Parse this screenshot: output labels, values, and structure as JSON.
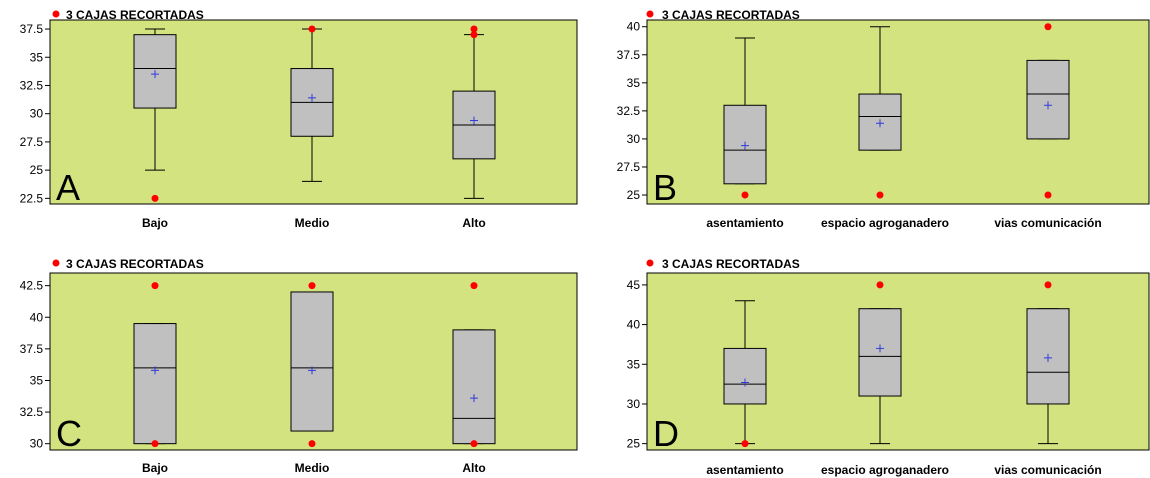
{
  "colors": {
    "panel_bg": "#d3e37f",
    "box_fill": "#c0c0c0",
    "box_stroke": "#000000",
    "mean_marker": "#2f3bd9",
    "outlier": "#ff0000"
  },
  "chart_data": [
    {
      "type": "box",
      "panel_letter": "A",
      "annotation": "3 CAJAS RECORTADAS",
      "categories": [
        "Bajo",
        "Medio",
        "Alto"
      ],
      "ylim": [
        22,
        38.3
      ],
      "yticks": [
        22.5,
        25,
        27.5,
        30,
        32.5,
        35,
        37.5
      ],
      "ytick_labels": [
        "22.5",
        "25",
        "27.5",
        "30",
        "32.5",
        "35",
        "37.5"
      ],
      "boxes": [
        {
          "whisker_low": 25,
          "q1": 30.5,
          "median": 34,
          "q3": 37,
          "whisker_high": 37.5,
          "mean": 33.5,
          "outliers": [
            22.5
          ]
        },
        {
          "whisker_low": 24,
          "q1": 28,
          "median": 31,
          "q3": 34,
          "whisker_high": 37.5,
          "mean": 31.4,
          "outliers": [
            37.5
          ]
        },
        {
          "whisker_low": 22.5,
          "q1": 26,
          "median": 29,
          "q3": 32,
          "whisker_high": 37,
          "mean": 29.4,
          "outliers": [
            37.5,
            37
          ]
        }
      ]
    },
    {
      "type": "box",
      "panel_letter": "B",
      "annotation": "3 CAJAS RECORTADAS",
      "categories": [
        "asentamiento",
        "espacio  agroganadero",
        "vias  comunicación"
      ],
      "ylim": [
        24.2,
        40.6
      ],
      "yticks": [
        25,
        27.5,
        30,
        32.5,
        35,
        37.5,
        40
      ],
      "ytick_labels": [
        "25",
        "27.5",
        "30",
        "32.5",
        "35",
        "37.5",
        "40"
      ],
      "boxes": [
        {
          "whisker_low": 26,
          "q1": 26,
          "median": 29,
          "q3": 33,
          "whisker_high": 39,
          "mean": 29.4,
          "outliers": [
            25
          ]
        },
        {
          "whisker_low": 29,
          "q1": 29,
          "median": 32,
          "q3": 34,
          "whisker_high": 40,
          "mean": 31.4,
          "outliers": [
            25
          ]
        },
        {
          "whisker_low": 30,
          "q1": 30,
          "median": 34,
          "q3": 37,
          "whisker_high": 37,
          "mean": 33,
          "outliers": [
            25,
            40
          ]
        }
      ]
    },
    {
      "type": "box",
      "panel_letter": "C",
      "annotation": "3 CAJAS RECORTADAS",
      "categories": [
        "Bajo",
        "Medio",
        "Alto"
      ],
      "ylim": [
        29.5,
        43.5
      ],
      "yticks": [
        30,
        32.5,
        35,
        37.5,
        40,
        42.5
      ],
      "ytick_labels": [
        "30",
        "32.5",
        "35",
        "37.5",
        "40",
        "42.5"
      ],
      "boxes": [
        {
          "whisker_low": 30,
          "q1": 30,
          "median": 36,
          "q3": 39.5,
          "whisker_high": 39.5,
          "mean": 35.8,
          "outliers": [
            42.5,
            30
          ]
        },
        {
          "whisker_low": 31,
          "q1": 31,
          "median": 36,
          "q3": 42,
          "whisker_high": 42,
          "mean": 35.8,
          "outliers": [
            42.5,
            30
          ]
        },
        {
          "whisker_low": 30,
          "q1": 30,
          "median": 32,
          "q3": 39,
          "whisker_high": 39,
          "mean": 33.6,
          "outliers": [
            42.5,
            30
          ]
        }
      ]
    },
    {
      "type": "box",
      "panel_letter": "D",
      "annotation": "3 CAJAS RECORTADAS",
      "categories": [
        "asentamiento",
        "espacio  agroganadero",
        "vias  comunicación"
      ],
      "ylim": [
        24.2,
        46.5
      ],
      "yticks": [
        25,
        30,
        35,
        40,
        45
      ],
      "ytick_labels": [
        "25",
        "30",
        "35",
        "40",
        "45"
      ],
      "boxes": [
        {
          "whisker_low": 25,
          "q1": 30,
          "median": 32.5,
          "q3": 37,
          "whisker_high": 43,
          "mean": 32.7,
          "outliers": [
            25
          ]
        },
        {
          "whisker_low": 25,
          "q1": 31,
          "median": 36,
          "q3": 42,
          "whisker_high": 42,
          "mean": 37,
          "outliers": [
            45
          ]
        },
        {
          "whisker_low": 25,
          "q1": 30,
          "median": 34,
          "q3": 42,
          "whisker_high": 42,
          "mean": 35.8,
          "outliers": [
            45
          ]
        }
      ]
    }
  ]
}
